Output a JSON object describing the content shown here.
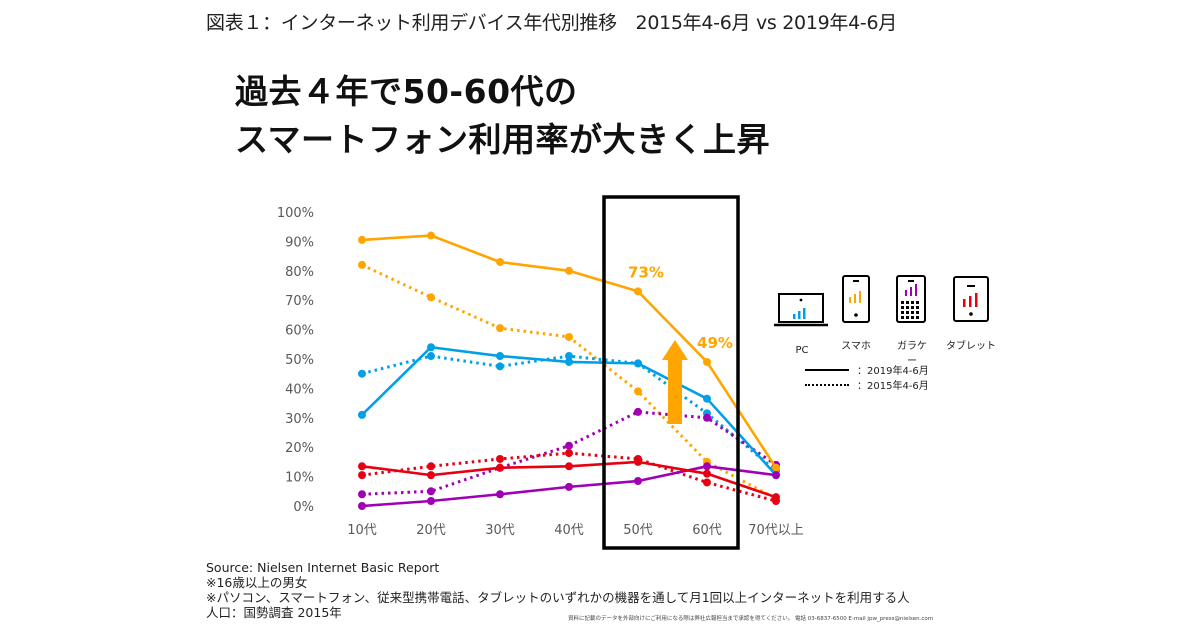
{
  "figure_title": "図表１：インターネット利用デバイス年代別推移　2015年4-6月 vs 2019年4-6月",
  "headline": {
    "line1": "過去４年で50-60代の",
    "line2": "スマートフォン利用率が大きく上昇"
  },
  "legend": {
    "devices": [
      {
        "key": "pc",
        "label": "PC",
        "icon": "laptop-icon",
        "color": "#00A0E9"
      },
      {
        "key": "smartphone",
        "label": "スマホ",
        "icon": "smartphone-icon",
        "color": "#FFA500"
      },
      {
        "key": "feature_phone",
        "label": "ガラケー",
        "icon": "feature-phone-icon",
        "color": "#A000B4"
      },
      {
        "key": "tablet",
        "label": "タブレット",
        "icon": "tablet-icon",
        "color": "#E60012"
      }
    ],
    "line_styles": [
      {
        "style": "solid",
        "label": "：2019年4-6月"
      },
      {
        "style": "dotted",
        "label": "：2015年4-6月"
      }
    ]
  },
  "chart_data": {
    "type": "line",
    "title": "インターネット利用デバイス年代別推移",
    "xlabel": "",
    "ylabel": "",
    "categories": [
      "10代",
      "20代",
      "30代",
      "40代",
      "50代",
      "60代",
      "70代以上"
    ],
    "yticks": [
      "0%",
      "10%",
      "20%",
      "30%",
      "40%",
      "50%",
      "60%",
      "70%",
      "80%",
      "90%",
      "100%"
    ],
    "ylim": [
      0,
      100
    ],
    "grid": false,
    "legend_position": "right",
    "series": [
      {
        "name": "スマホ 2019年4-6月",
        "device": "smartphone",
        "period": "2019",
        "style": "solid",
        "color": "#FFA500",
        "values": [
          90.5,
          92,
          83,
          80,
          73,
          49,
          13
        ]
      },
      {
        "name": "スマホ 2015年4-6月",
        "device": "smartphone",
        "period": "2015",
        "style": "dotted",
        "color": "#FFA500",
        "values": [
          82,
          71,
          60.5,
          57.5,
          39,
          15,
          2.5
        ]
      },
      {
        "name": "PC 2019年4-6月",
        "device": "pc",
        "period": "2019",
        "style": "solid",
        "color": "#00A0E9",
        "values": [
          31,
          54,
          51,
          49,
          48.5,
          36.5,
          10.5
        ]
      },
      {
        "name": "PC 2015年4-6月",
        "device": "pc",
        "period": "2015",
        "style": "dotted",
        "color": "#00A0E9",
        "values": [
          45,
          51,
          47.5,
          51,
          48.5,
          31.5,
          12
        ]
      },
      {
        "name": "ガラケー 2019年4-6月",
        "device": "feature_phone",
        "period": "2019",
        "style": "solid",
        "color": "#A000B4",
        "values": [
          0,
          1.7,
          4,
          6.5,
          8.5,
          13.5,
          10.5
        ]
      },
      {
        "name": "ガラケー 2015年4-6月",
        "device": "feature_phone",
        "period": "2015",
        "style": "dotted",
        "color": "#A000B4",
        "values": [
          4,
          5,
          13,
          20.5,
          32,
          30,
          14
        ]
      },
      {
        "name": "タブレット 2019年4-6月",
        "device": "tablet",
        "period": "2019",
        "style": "solid",
        "color": "#E60012",
        "values": [
          13.5,
          10.5,
          13,
          13.5,
          15,
          11,
          3
        ]
      },
      {
        "name": "タブレット 2015年4-6月",
        "device": "tablet",
        "period": "2015",
        "style": "dotted",
        "color": "#E60012",
        "values": [
          10.5,
          13.5,
          16,
          18,
          16,
          8,
          1.7
        ]
      }
    ],
    "annotations": [
      {
        "text": "73%",
        "category": "50代",
        "series": "スマホ 2019年4-6月",
        "color": "#FFA500"
      },
      {
        "text": "49%",
        "category": "60代",
        "series": "スマホ 2019年4-6月",
        "color": "#FFA500"
      },
      {
        "type": "highlight-box",
        "categories": [
          "50代",
          "60代"
        ]
      },
      {
        "type": "up-arrow",
        "between": [
          "50代",
          "60代"
        ],
        "color": "#FFA500"
      }
    ]
  },
  "footer": {
    "source": "Source: Nielsen Internet Basic Report",
    "note1": "※16歳以上の男女",
    "note2": "※パソコン、スマートフォン、従来型携帯電話、タブレットのいずれかの機器を通して月1回以上インターネットを利用する人",
    "note3": "人口：国勢調査 2015年",
    "fine_print": "資料に記載のデータを外部向けにご利用になる際は弊社広報担当まで承認を得てください。 電話 03-6837-6500 E-mail jpw_press@nielsen.com"
  }
}
